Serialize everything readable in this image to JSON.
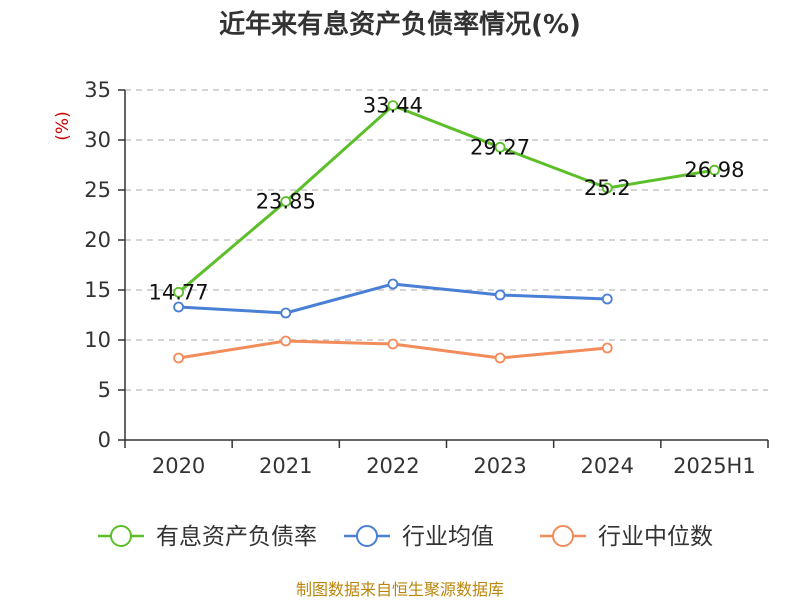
{
  "chart_data": {
    "type": "line",
    "title": "近年来有息资产负债率情况(%)",
    "ylabel": "(%)",
    "xlabel": "",
    "categories": [
      "2020",
      "2021",
      "2022",
      "2023",
      "2024",
      "2025H1"
    ],
    "ylim": [
      0,
      35
    ],
    "yticks": [
      0,
      5,
      10,
      15,
      20,
      25,
      30,
      35
    ],
    "grid": "horizontal dashed",
    "legend_position": "bottom",
    "series": [
      {
        "name": "有息资产负债率",
        "color": "#5cbf2a",
        "labels": true,
        "values": [
          14.77,
          23.85,
          33.44,
          29.27,
          25.2,
          26.98
        ]
      },
      {
        "name": "行业均值",
        "color": "#4a7fd6",
        "labels": false,
        "values": [
          13.3,
          12.7,
          15.6,
          14.5,
          14.1,
          null
        ]
      },
      {
        "name": "行业中位数",
        "color": "#f28c5a",
        "labels": false,
        "values": [
          8.2,
          9.9,
          9.6,
          8.2,
          9.2,
          null
        ]
      }
    ],
    "source": "制图数据来自恒生聚源数据库"
  }
}
